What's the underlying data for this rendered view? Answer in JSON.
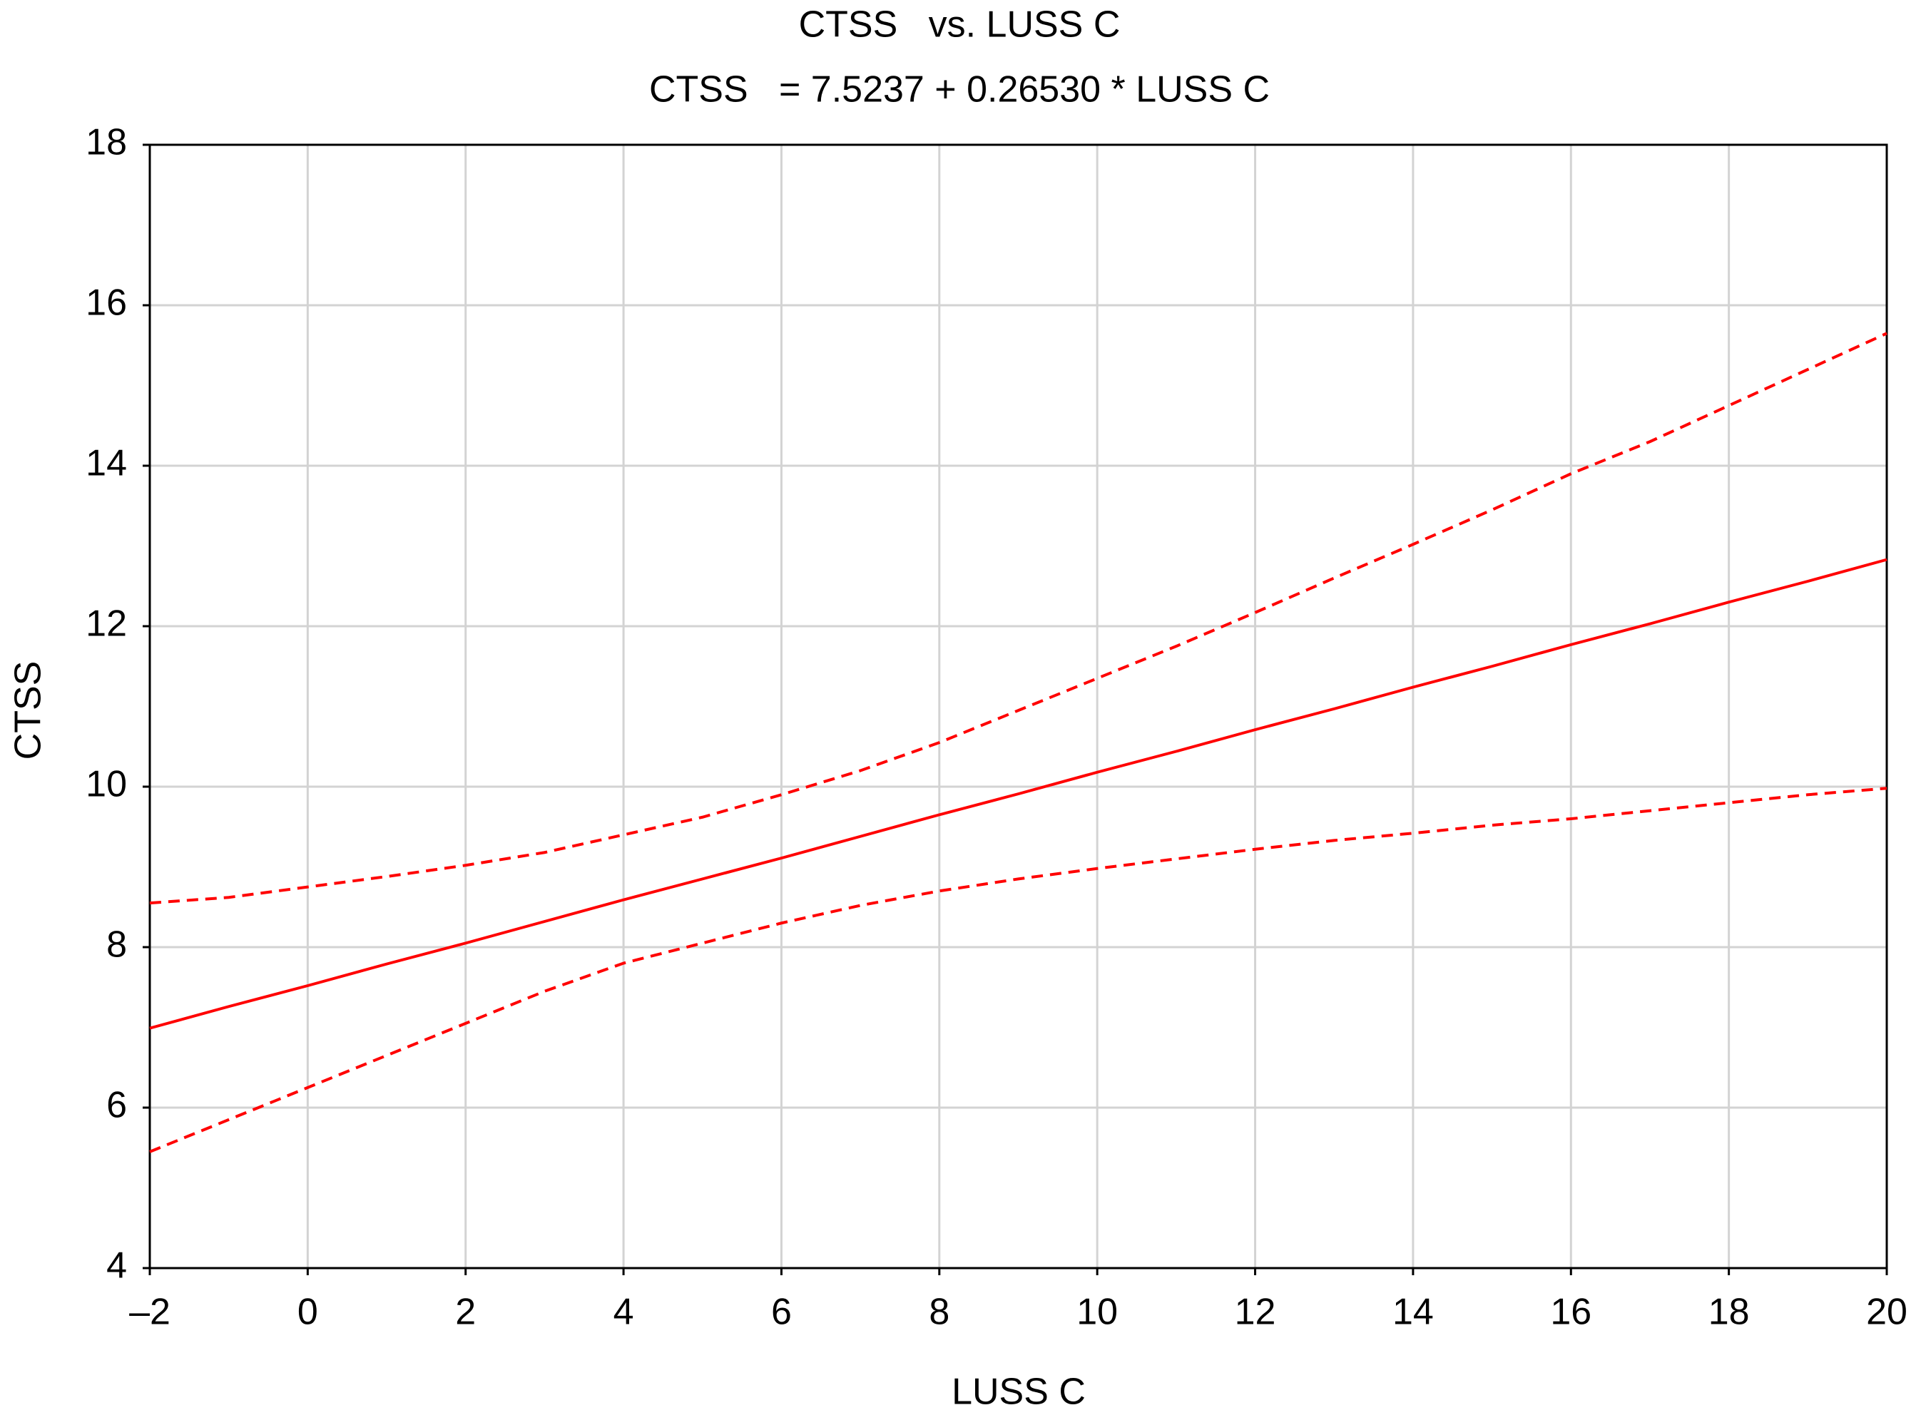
{
  "chart_data": {
    "type": "line",
    "title": "CTSS   vs. LUSS C",
    "subtitle": "CTSS   = 7.5237 + 0.26530 * LUSS C",
    "x_label": "LUSS C",
    "y_label": "CTSS",
    "x": [
      -2,
      -1,
      0,
      1,
      2,
      3,
      4,
      5,
      6,
      7,
      8,
      9,
      10,
      11,
      12,
      13,
      14,
      15,
      16,
      17,
      18,
      19,
      20
    ],
    "series": [
      {
        "color": "#ff0000",
        "dashed": false,
        "values": [
          6.99,
          7.26,
          7.52,
          7.79,
          8.05,
          8.32,
          8.59,
          8.85,
          9.11,
          9.38,
          9.65,
          9.91,
          10.18,
          10.44,
          10.71,
          10.97,
          11.24,
          11.5,
          11.77,
          12.03,
          12.3,
          12.56,
          12.83
        ]
      },
      {
        "color": "#ff0000",
        "dashed": true,
        "values": [
          8.55,
          8.62,
          8.75,
          8.88,
          9.02,
          9.18,
          9.4,
          9.62,
          9.9,
          10.2,
          10.55,
          10.95,
          11.35,
          11.75,
          12.17,
          12.6,
          13.02,
          13.45,
          13.9,
          14.3,
          14.75,
          15.2,
          15.65
        ]
      },
      {
        "color": "#ff0000",
        "dashed": true,
        "values": [
          5.45,
          5.85,
          6.25,
          6.65,
          7.05,
          7.45,
          7.8,
          8.05,
          8.3,
          8.52,
          8.7,
          8.85,
          8.98,
          9.1,
          9.22,
          9.33,
          9.42,
          9.52,
          9.6,
          9.7,
          9.8,
          9.9,
          9.98
        ]
      }
    ],
    "xlim": [
      -2,
      20
    ],
    "xticks": [
      {
        "value": -2,
        "label": "–2"
      },
      0,
      2,
      4,
      6,
      8,
      10,
      12,
      14,
      16,
      18,
      20
    ],
    "ylim": [
      4,
      18
    ],
    "yticks": [
      4,
      6,
      8,
      10,
      12,
      14,
      16,
      18
    ],
    "grid": true
  }
}
